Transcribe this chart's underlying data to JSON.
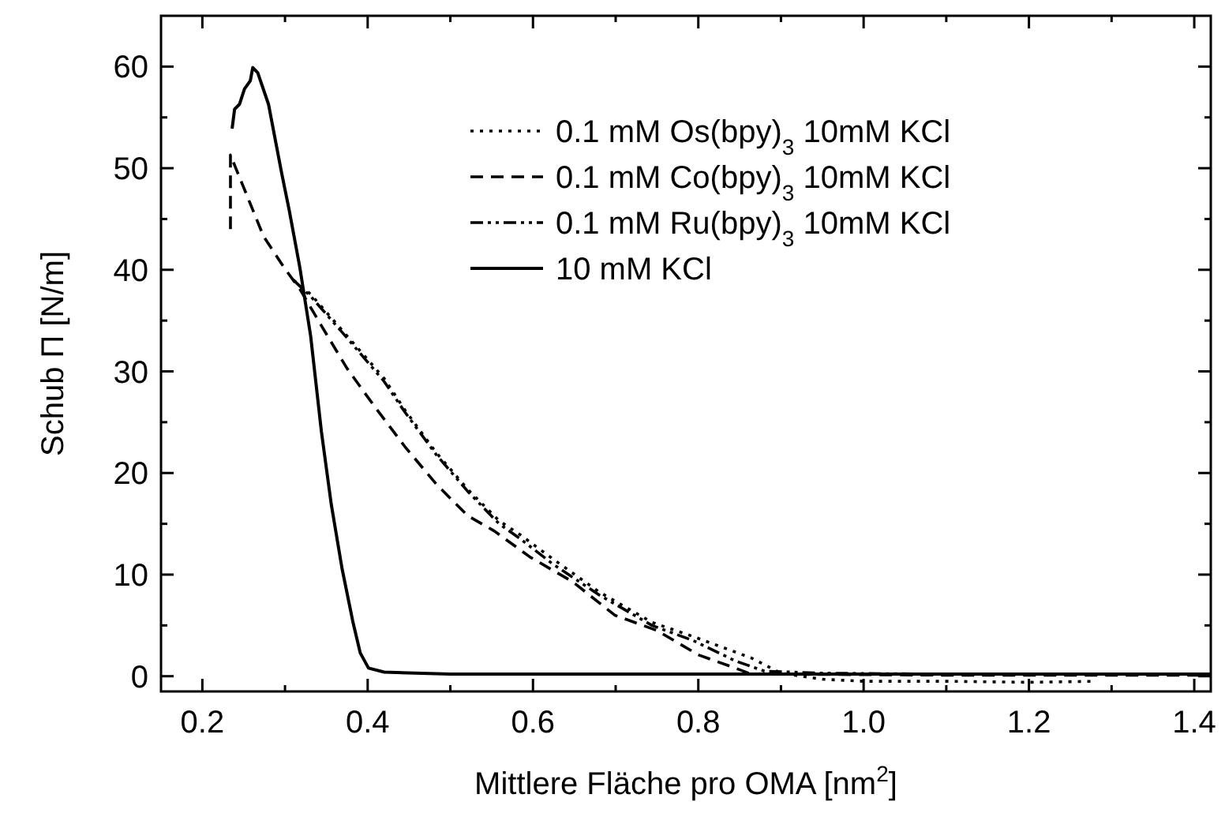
{
  "chart_data": {
    "type": "line",
    "xlabel": "Mittlere Fläche pro OMA [nm$^{2}$]",
    "ylabel": "Schub Π [N/m]",
    "xlim": [
      0.15,
      1.42
    ],
    "ylim": [
      -1.5,
      65
    ],
    "xticks": [
      {
        "value": 0.2,
        "label": "0.2"
      },
      {
        "value": 0.3,
        "label": null
      },
      {
        "value": 0.4,
        "label": "0.4"
      },
      {
        "value": 0.5,
        "label": null
      },
      {
        "value": 0.6,
        "label": "0.6"
      },
      {
        "value": 0.7,
        "label": null
      },
      {
        "value": 0.8,
        "label": "0.8"
      },
      {
        "value": 0.9,
        "label": null
      },
      {
        "value": 1.0,
        "label": "1.0"
      },
      {
        "value": 1.1,
        "label": null
      },
      {
        "value": 1.2,
        "label": "1.2"
      },
      {
        "value": 1.3,
        "label": null
      },
      {
        "value": 1.4,
        "label": "1.4"
      }
    ],
    "yticks": [
      0,
      {
        "value": 5,
        "label": null
      },
      10,
      {
        "value": 15,
        "label": null
      },
      20,
      {
        "value": 25,
        "label": null
      },
      30,
      {
        "value": 35,
        "label": null
      },
      40,
      {
        "value": 45,
        "label": null
      },
      50,
      {
        "value": 55,
        "label": null
      },
      60
    ],
    "grid": false,
    "legend": "top right",
    "marker": "none",
    "series": [
      {
        "name": "0.1 mM Os(bpy)$_{3}$ 10mM KCl",
        "color": "#000000",
        "line_style": "dotted",
        "x": [
          0.31,
          0.331,
          0.375,
          0.42,
          0.445,
          0.483,
          0.521,
          0.559,
          0.585,
          0.623,
          0.68,
          0.744,
          0.794,
          0.864,
          0.9,
          0.95,
          1.0,
          1.1,
          1.2,
          1.28
        ],
        "values": [
          39,
          37.6,
          33.5,
          29.3,
          26.2,
          22.0,
          18.4,
          15.3,
          13.9,
          11.6,
          8.3,
          5.3,
          3.9,
          1.8,
          0.3,
          -0.3,
          -0.5,
          -0.5,
          -0.6,
          -0.5
        ]
      },
      {
        "name": "0.1 mM Co(bpy)$_{3}$ 10mM KCl",
        "color": "#000000",
        "line_style": "dashed",
        "x": [
          0.234,
          0.234,
          0.248,
          0.274,
          0.299,
          0.318,
          0.344,
          0.375,
          0.407,
          0.445,
          0.483,
          0.521,
          0.553,
          0.597,
          0.648,
          0.699,
          0.75,
          0.8,
          0.845,
          0.864,
          0.9,
          1.1,
          1.42
        ],
        "values": [
          44,
          51.3,
          48.5,
          43.3,
          40.2,
          38.1,
          34.5,
          30.3,
          26.7,
          22.6,
          18.9,
          15.8,
          14.3,
          11.7,
          9.3,
          6.0,
          4.5,
          2.1,
          0.8,
          0.2,
          0.2,
          0.1,
          0.1
        ]
      },
      {
        "name": "0.1 mM Ru(bpy)$_{3}$ 10mM KCl",
        "color": "#000000",
        "line_style": "dashdot",
        "x": [
          0.31,
          0.331,
          0.375,
          0.42,
          0.445,
          0.483,
          0.521,
          0.559,
          0.585,
          0.623,
          0.68,
          0.744,
          0.794,
          0.845,
          0.88,
          0.95,
          1.1,
          1.42
        ],
        "values": [
          39,
          37.4,
          33.3,
          29.0,
          26.0,
          21.8,
          18.2,
          15.0,
          13.5,
          11.1,
          8.0,
          5.0,
          3.5,
          1.5,
          0.5,
          0.3,
          0.2,
          0.2
        ]
      },
      {
        "name": "10 mM KCl",
        "color": "#000000",
        "line_style": "solid",
        "x": [
          0.236,
          0.239,
          0.245,
          0.251,
          0.258,
          0.261,
          0.267,
          0.28,
          0.296,
          0.305,
          0.318,
          0.331,
          0.344,
          0.356,
          0.369,
          0.382,
          0.391,
          0.401,
          0.42,
          0.5,
          0.7,
          0.9,
          1.1,
          1.42
        ],
        "values": [
          53.9,
          55.8,
          56.3,
          57.8,
          58.6,
          59.9,
          59.4,
          56.3,
          49.5,
          45.9,
          40.2,
          33.5,
          24.1,
          16.9,
          10.6,
          5.4,
          2.3,
          0.8,
          0.4,
          0.2,
          0.2,
          0.2,
          0.2,
          0.2
        ]
      }
    ]
  }
}
